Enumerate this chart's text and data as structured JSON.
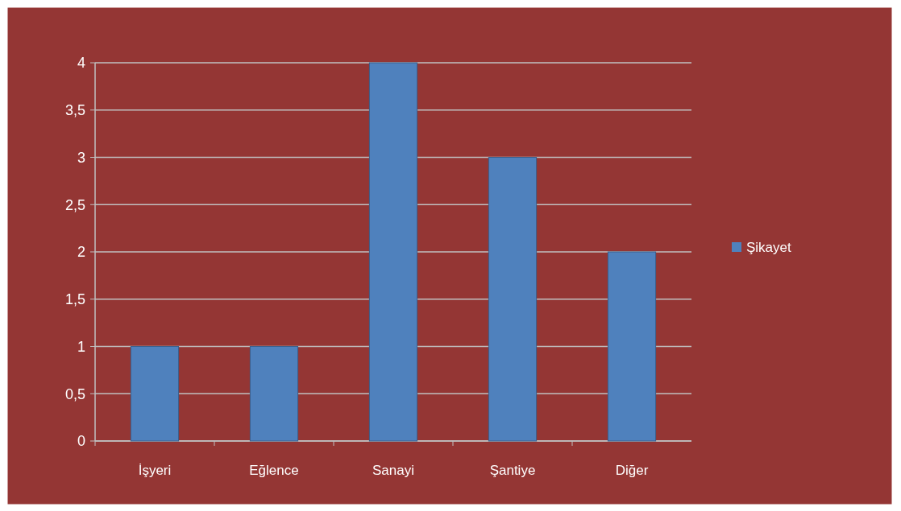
{
  "chart_data": {
    "type": "bar",
    "categories": [
      "İşyeri",
      "Eğlence",
      "Sanayi",
      "Şantiye",
      "Diğer"
    ],
    "series": [
      {
        "name": "Şikayet",
        "color": "#4f81bd",
        "values": [
          1,
          1,
          4,
          3,
          2
        ]
      }
    ],
    "ylim": [
      0,
      4
    ],
    "yticks": [
      0,
      {
        "value": 0.5,
        "label": "0,5"
      },
      1,
      {
        "value": 1.5,
        "label": "1,5"
      },
      2,
      {
        "value": 2.5,
        "label": "2,5"
      },
      3,
      {
        "value": 3.5,
        "label": "3,5"
      },
      4
    ],
    "grid": "y",
    "legend": "right"
  }
}
